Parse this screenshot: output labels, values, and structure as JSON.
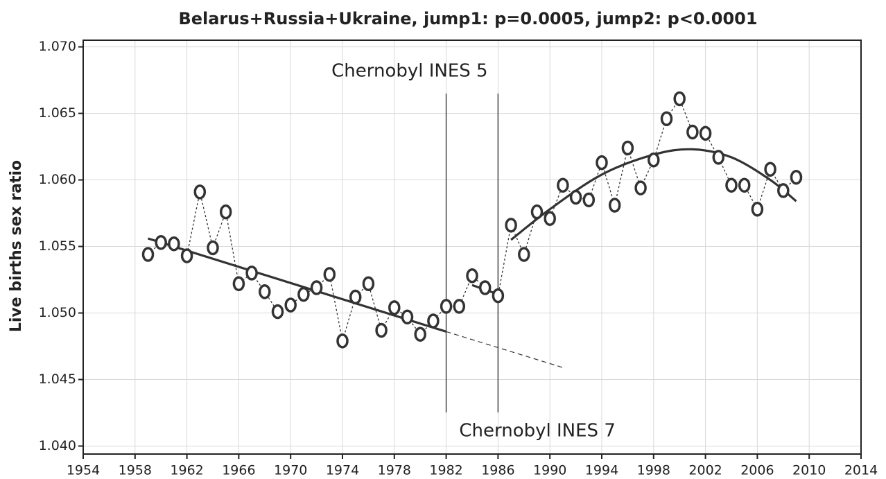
{
  "chart_data": {
    "type": "line",
    "title": "Belarus+Russia+Ukraine, jump1: p=0.0005, jump2: p<0.0001",
    "y_label": "Live births sex ratio",
    "x": [
      1959,
      1960,
      1961,
      1962,
      1963,
      1964,
      1965,
      1966,
      1967,
      1968,
      1969,
      1970,
      1971,
      1972,
      1973,
      1974,
      1975,
      1976,
      1977,
      1978,
      1979,
      1980,
      1981,
      1982,
      1983,
      1984,
      1985,
      1986,
      1987,
      1988,
      1989,
      1990,
      1991,
      1992,
      1993,
      1994,
      1995,
      1996,
      1997,
      1998,
      1999,
      2000,
      2001,
      2002,
      2003,
      2004,
      2005,
      2006,
      2007,
      2008,
      2009
    ],
    "values": [
      1.0544,
      1.0553,
      1.0552,
      1.0543,
      1.0591,
      1.0549,
      1.0576,
      1.0522,
      1.053,
      1.0516,
      1.0501,
      1.0506,
      1.0514,
      1.0519,
      1.0529,
      1.0479,
      1.0512,
      1.0522,
      1.0487,
      1.0504,
      1.0497,
      1.0484,
      1.0494,
      1.0505,
      1.0505,
      1.0528,
      1.0519,
      1.0513,
      1.0566,
      1.0544,
      1.0576,
      1.0571,
      1.0596,
      1.0587,
      1.0585,
      1.0613,
      1.0581,
      1.0624,
      1.0594,
      1.0615,
      1.0646,
      1.0661,
      1.0636,
      1.0635,
      1.0617,
      1.0596,
      1.0596,
      1.0578,
      1.0608,
      1.0592,
      1.0602
    ],
    "color": "#333333",
    "fits": [
      {
        "x": [
          1959,
          1982
        ],
        "values": [
          1.0556,
          1.0486
        ],
        "dashed": false
      },
      {
        "x": [
          1982,
          1991
        ],
        "values": [
          1.0486,
          1.0459
        ],
        "dashed": true
      },
      {
        "x": [
          1984,
          1986
        ],
        "values": [
          1.0521,
          1.0514
        ],
        "dashed": false
      },
      {
        "x": [
          1987,
          1990,
          1994,
          1998,
          2001,
          2004,
          2007,
          2009
        ],
        "values": [
          1.0555,
          1.0578,
          1.0604,
          1.0619,
          1.0623,
          1.0617,
          1.06,
          1.0584
        ],
        "dashed": false
      }
    ],
    "events": [
      {
        "x": 1982,
        "label": "Chernobyl INES 5"
      },
      {
        "x": 1986,
        "label": "Chernobyl INES 7"
      }
    ],
    "xlim": [
      1954,
      2014
    ],
    "xticks": [
      1954,
      1958,
      1962,
      1966,
      1970,
      1974,
      1978,
      1982,
      1986,
      1990,
      1994,
      1998,
      2002,
      2006,
      2010,
      2014
    ],
    "ylim": [
      1.0394,
      1.0705
    ],
    "yticks": [
      {
        "value": 1.04,
        "label": "1.040"
      },
      1.045,
      {
        "value": 1.05,
        "label": "1.050"
      },
      1.055,
      {
        "value": 1.06,
        "label": "1.060"
      },
      1.065,
      {
        "value": 1.07,
        "label": "1.070"
      }
    ],
    "grid": true
  }
}
